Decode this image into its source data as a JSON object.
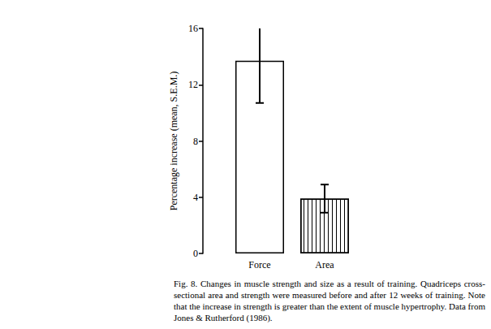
{
  "chart_data": {
    "type": "bar",
    "categories": [
      "Force",
      "Area"
    ],
    "values": [
      13.7,
      3.9
    ],
    "errors": [
      3.0,
      1.0
    ],
    "color": "#ffffff",
    "ylabel": "Percentage increase (mean, S.E.M.)",
    "ylim": [
      0,
      16
    ],
    "yticks": [
      0,
      4,
      8,
      12,
      16
    ],
    "grid": false,
    "caption": "Fig. 8. Changes in muscle strength and size as a result of training. Quadriceps cross-sectional area and strength were measured before and after 12 weeks of training. Note that the increase in strength is greater than the extent of muscle hypertrophy. Data from Jones & Rutherford (1986)."
  }
}
